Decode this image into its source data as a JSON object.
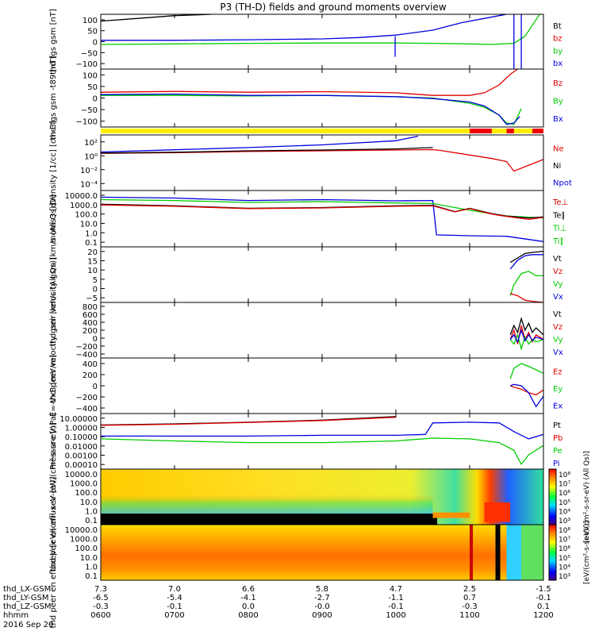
{
  "title": "P3 (TH-D) fields and ground moments overview",
  "footer": {
    "row_labels": [
      "thd_LX-GSM",
      "thd_LY-GSM",
      "thd_LZ-GSM",
      "hhmm"
    ],
    "date": "2016 Sep 20",
    "columns": [
      [
        "7.3",
        "-6.5",
        "-0.3",
        "0600"
      ],
      [
        "7.0",
        "-5.4",
        "-0.1",
        "0700"
      ],
      [
        "6.6",
        "-4.1",
        "0.0",
        "0800"
      ],
      [
        "5.8",
        "-2.7",
        "-0.0",
        "0900"
      ],
      [
        "4.7",
        "-1.1",
        "-0.1",
        "1000"
      ],
      [
        "2.5",
        "0.7",
        "-0.3",
        "1100"
      ],
      [
        "-1.5",
        "-0.1",
        "0.1",
        "1200"
      ]
    ]
  },
  "colors": {
    "black": "#000000",
    "red": "#e00000",
    "green": "#00cc00",
    "blue": "#0000dd",
    "mode_bar_yellow": "#ffee00",
    "mode_bar_red": "#ee0000"
  },
  "chart_data": [
    {
      "type": "line",
      "ylabel": "thd fgs gsm [nT]",
      "yticks": [
        "100",
        "50",
        "0",
        "−50",
        "−100"
      ],
      "ylim": [
        -100,
        100
      ],
      "legend": [
        {
          "name": "Bt",
          "color": "#000000"
        },
        {
          "name": "bz",
          "color": "#e00000"
        },
        {
          "name": "by",
          "color": "#00cc00"
        },
        {
          "name": "bx",
          "color": "#0000dd"
        }
      ],
      "series": [
        {
          "name": "Bt",
          "color": "#000000",
          "x": [
            6.0,
            6.5,
            7.0,
            7.5
          ],
          "y": [
            75,
            85,
            95,
            100
          ]
        },
        {
          "name": "bx",
          "color": "#0000dd",
          "x": [
            6.0,
            7.0,
            8.0,
            9.0,
            9.5,
            10.0,
            10.5,
            10.9,
            11.2,
            11.4,
            11.5
          ],
          "y": [
            5,
            5,
            7,
            10,
            15,
            24,
            42,
            70,
            85,
            95,
            100
          ]
        },
        {
          "name": "by",
          "color": "#00cc00",
          "x": [
            6.0,
            7.0,
            8.0,
            9.0,
            10.0,
            10.5,
            11.0,
            11.3,
            11.6,
            11.75,
            11.85,
            11.95
          ],
          "y": [
            -10,
            -8,
            -6,
            -5,
            -5,
            -6,
            -8,
            -10,
            -6,
            20,
            60,
            100
          ]
        }
      ],
      "spikes": [
        {
          "x": 9.99,
          "y": [
            -55,
            20
          ],
          "color": "#0000dd"
        },
        {
          "x": 11.6,
          "y": [
            -100,
            100
          ],
          "color": "#0000dd"
        },
        {
          "x": 11.7,
          "y": [
            -100,
            100
          ],
          "color": "#0000dd"
        }
      ]
    },
    {
      "type": "line",
      "ylabel": "thd fgs gsm -t89 [nT]",
      "yticks": [
        "100",
        "50",
        "0",
        "−50",
        "−100"
      ],
      "ylim": [
        -120,
        100
      ],
      "legend": [
        {
          "name": "Bz",
          "color": "#e00000"
        },
        {
          "name": "By",
          "color": "#00cc00"
        },
        {
          "name": "Bx",
          "color": "#0000dd"
        }
      ],
      "series": [
        {
          "name": "Bz",
          "color": "#e00000",
          "x": [
            6.0,
            7.0,
            8.0,
            9.0,
            10.0,
            10.5,
            11.0,
            11.2,
            11.4,
            11.55,
            11.65
          ],
          "y": [
            12,
            15,
            12,
            14,
            10,
            0,
            0,
            10,
            40,
            80,
            100
          ]
        },
        {
          "name": "By",
          "color": "#00cc00",
          "x": [
            6.0,
            7.0,
            8.0,
            9.0,
            10.0,
            10.5,
            11.0,
            11.2,
            11.4,
            11.5,
            11.6,
            11.7
          ],
          "y": [
            0,
            0,
            -2,
            0,
            -5,
            -10,
            -30,
            -45,
            -75,
            -105,
            -110,
            -50
          ]
        },
        {
          "name": "Bx",
          "color": "#0000dd",
          "x": [
            6.0,
            7.0,
            8.0,
            9.0,
            10.0,
            10.5,
            11.0,
            11.2,
            11.4,
            11.5,
            11.6,
            11.68
          ],
          "y": [
            3,
            5,
            0,
            0,
            -5,
            -12,
            -25,
            -40,
            -75,
            -110,
            -105,
            -80
          ]
        }
      ]
    },
    {
      "type": "line",
      "ylabel": "Density [1/cc] [cm-3]",
      "yticks": [
        "10²",
        "10⁰",
        "10⁻²",
        "10⁻⁴"
      ],
      "log": true,
      "ylim": [
        1e-05,
        300
      ],
      "legend": [
        {
          "name": "Ne",
          "color": "#e00000"
        },
        {
          "name": "Ni",
          "color": "#000000"
        },
        {
          "name": "Npot",
          "color": "#0000dd"
        }
      ],
      "series": [
        {
          "name": "Ne",
          "color": "#e00000",
          "x": [
            6.0,
            7.0,
            8.0,
            9.0,
            10.0,
            10.5,
            10.6,
            11.0,
            11.3,
            11.5,
            11.6,
            11.7,
            12.0
          ],
          "y": [
            1.0,
            1.2,
            1.8,
            2.2,
            2.8,
            3.2,
            2.5,
            0.6,
            0.2,
            0.08,
            0.004,
            0.01,
            0.15
          ]
        },
        {
          "name": "Ni",
          "color": "#000000",
          "x": [
            6.0,
            7.0,
            8.0,
            9.0,
            10.0,
            10.5
          ],
          "y": [
            1.1,
            1.4,
            2.2,
            2.8,
            4.0,
            6.0
          ]
        },
        {
          "name": "Npot",
          "color": "#0000dd",
          "x": [
            6.0,
            7.0,
            8.0,
            9.0,
            10.0,
            10.3
          ],
          "y": [
            1.5,
            3,
            6,
            14,
            50,
            200
          ]
        }
      ]
    },
    {
      "type": "line",
      "ylabel": "moms3 [eV]",
      "yticks": [
        "10000.0",
        "1000.0",
        "100.0",
        "10.0",
        "1.0",
        "0.1"
      ],
      "log": true,
      "ylim": [
        0.1,
        12000
      ],
      "legend": [
        {
          "name": "Te⊥",
          "color": "#e00000"
        },
        {
          "name": "Te∥",
          "color": "#000000"
        },
        {
          "name": "Ti⊥",
          "color": "#00cc00"
        },
        {
          "name": "Ti∥",
          "color": "#00cc00"
        }
      ],
      "series": [
        {
          "name": "Ti⊥",
          "color": "#0000dd",
          "x": [
            6.0,
            7.0,
            8.0,
            9.0,
            10.0,
            10.5,
            10.55,
            11.0,
            11.5,
            12.0
          ],
          "y": [
            3000,
            2500,
            1500,
            1800,
            1400,
            1500,
            1.2,
            1.0,
            0.9,
            0.3
          ]
        },
        {
          "name": "Ti∥",
          "color": "#00cc00",
          "x": [
            6.0,
            7.0,
            8.0,
            9.0,
            10.0,
            10.5,
            11.0,
            11.5,
            12.0
          ],
          "y": [
            1800,
            1500,
            1000,
            1200,
            900,
            800,
            200,
            60,
            40
          ]
        },
        {
          "name": "Te∥",
          "color": "#000000",
          "x": [
            6.0,
            7.0,
            8.0,
            9.0,
            10.0,
            10.5,
            10.8,
            11.0,
            11.3,
            11.5,
            11.8,
            12.0
          ],
          "y": [
            700,
            500,
            300,
            350,
            500,
            550,
            150,
            300,
            100,
            60,
            40,
            50
          ]
        },
        {
          "name": "Te⊥",
          "color": "#e00000",
          "x": [
            6.0,
            7.0,
            8.0,
            9.0,
            10.0,
            10.5,
            10.8,
            11.0,
            11.3,
            11.5,
            11.8,
            12.0
          ],
          "y": [
            600,
            450,
            280,
            320,
            450,
            500,
            140,
            280,
            90,
            55,
            30,
            45
          ]
        }
      ]
    },
    {
      "type": "line",
      "ylabel": "thd peir velocity gsm [km/s (All Qs)]",
      "yticks": [
        "20",
        "15",
        "10",
        "5",
        "0",
        "−5"
      ],
      "ylim": [
        -5,
        20
      ],
      "legend": [
        {
          "name": "Vt",
          "color": "#000000"
        },
        {
          "name": "Vz",
          "color": "#e00000"
        },
        {
          "name": "Vy",
          "color": "#00cc00"
        },
        {
          "name": "Vx",
          "color": "#0000dd"
        }
      ],
      "series": [
        {
          "name": "Vt",
          "color": "#000000",
          "x": [
            11.55,
            11.65,
            11.75,
            11.85,
            12.0
          ],
          "y": [
            13,
            15,
            17,
            17.5,
            18
          ]
        },
        {
          "name": "Vx",
          "color": "#0000dd",
          "x": [
            11.55,
            11.65,
            11.75,
            11.85,
            12.0
          ],
          "y": [
            10,
            14,
            16,
            16.5,
            16.5
          ]
        },
        {
          "name": "Vy",
          "color": "#00cc00",
          "x": [
            11.55,
            11.6,
            11.7,
            11.8,
            11.9,
            12.0
          ],
          "y": [
            -2,
            3,
            8,
            9,
            7,
            7
          ]
        },
        {
          "name": "Vz",
          "color": "#e00000",
          "x": [
            11.55,
            11.65,
            11.75,
            11.85,
            12.0
          ],
          "y": [
            -1,
            -2,
            -4,
            -4.5,
            -5
          ]
        }
      ]
    },
    {
      "type": "line",
      "ylabel": "thd peer velocity gsm [km/s (All Qs)]",
      "yticks": [
        "800",
        "600",
        "400",
        "200",
        "0",
        "−200",
        "−400"
      ],
      "ylim": [
        -400,
        800
      ],
      "legend": [
        {
          "name": "Vt",
          "color": "#000000"
        },
        {
          "name": "Vz",
          "color": "#e00000"
        },
        {
          "name": "Vy",
          "color": "#00cc00"
        },
        {
          "name": "Vx",
          "color": "#0000dd"
        }
      ],
      "series": [
        {
          "name": "Vt",
          "color": "#000000",
          "x": [
            11.55,
            11.6,
            11.65,
            11.7,
            11.75,
            11.8,
            11.85,
            11.9,
            12.0
          ],
          "y": [
            100,
            300,
            150,
            450,
            200,
            350,
            150,
            250,
            100
          ]
        },
        {
          "name": "Vz",
          "color": "#e00000",
          "x": [
            11.55,
            11.6,
            11.65,
            11.7,
            11.75,
            11.8,
            11.85,
            11.9,
            12.0
          ],
          "y": [
            0,
            200,
            -100,
            300,
            0,
            150,
            -50,
            100,
            0
          ]
        },
        {
          "name": "Vy",
          "color": "#00cc00",
          "x": [
            11.55,
            11.6,
            11.65,
            11.7,
            11.75,
            11.8,
            11.85,
            11.9,
            12.0
          ],
          "y": [
            0,
            -100,
            100,
            -200,
            50,
            -100,
            0,
            -50,
            0
          ]
        },
        {
          "name": "Vx",
          "color": "#0000dd",
          "x": [
            11.55,
            11.6,
            11.65,
            11.7,
            11.75,
            11.8,
            11.85,
            11.9,
            12.0
          ],
          "y": [
            0,
            100,
            -50,
            200,
            -30,
            100,
            -20,
            50,
            0
          ]
        }
      ]
    },
    {
      "type": "line",
      "ylabel": "E=-VxB [mV/m]",
      "yticks": [
        "400",
        "200",
        "0",
        "−200",
        "−400"
      ],
      "ylim": [
        -400,
        400
      ],
      "legend": [
        {
          "name": "Ez",
          "color": "#e00000"
        },
        {
          "name": "Ey",
          "color": "#00cc00"
        },
        {
          "name": "Ex",
          "color": "#0000dd"
        }
      ],
      "series": [
        {
          "name": "Ey",
          "color": "#00cc00",
          "x": [
            11.55,
            11.6,
            11.7,
            11.8,
            11.9,
            12.0
          ],
          "y": [
            100,
            250,
            320,
            280,
            230,
            180
          ]
        },
        {
          "name": "Ez",
          "color": "#e00000",
          "x": [
            11.55,
            11.6,
            11.7,
            11.8,
            11.9,
            12.0
          ],
          "y": [
            0,
            -20,
            -50,
            -100,
            -130,
            -60
          ]
        },
        {
          "name": "Ex",
          "color": "#0000dd",
          "x": [
            11.55,
            11.6,
            11.7,
            11.8,
            11.9,
            12.0
          ],
          "y": [
            0,
            20,
            0,
            -100,
            -300,
            -150
          ]
        }
      ]
    },
    {
      "type": "line",
      "ylabel": "Pressure [nPa]",
      "yticks": [
        "10.00000",
        "1.00000",
        "0.10000",
        "0.01000",
        "0.00100",
        "0.00010"
      ],
      "log": true,
      "ylim": [
        3e-05,
        25
      ],
      "legend": [
        {
          "name": "Pt",
          "color": "#000000"
        },
        {
          "name": "Pb",
          "color": "#e00000"
        },
        {
          "name": "Pe",
          "color": "#00cc00"
        },
        {
          "name": "Pi",
          "color": "#0000dd"
        }
      ],
      "series": [
        {
          "name": "Pt",
          "color": "#000000",
          "x": [
            6.0,
            7.0,
            8.0,
            9.0,
            10.0
          ],
          "y": [
            1.5,
            2,
            3,
            5,
            12
          ]
        },
        {
          "name": "Pb",
          "color": "#e00000",
          "x": [
            6.0,
            7.0,
            8.0,
            9.0,
            10.0
          ],
          "y": [
            1.4,
            1.8,
            2.8,
            4.5,
            10
          ]
        },
        {
          "name": "Pi",
          "color": "#0000dd",
          "x": [
            6.0,
            7.0,
            8.0,
            9.0,
            10.0,
            10.4,
            10.5,
            11.0,
            11.4,
            11.6,
            11.8,
            12.0
          ],
          "y": [
            0.1,
            0.1,
            0.1,
            0.12,
            0.12,
            0.15,
            2.5,
            3,
            2.5,
            0.3,
            0.05,
            0.15
          ]
        },
        {
          "name": "Pe",
          "color": "#00cc00",
          "x": [
            6.0,
            7.0,
            8.0,
            9.0,
            10.0,
            10.5,
            11.0,
            11.4,
            11.6,
            11.7,
            11.8,
            12.0
          ],
          "y": [
            0.05,
            0.03,
            0.02,
            0.02,
            0.03,
            0.06,
            0.05,
            0.02,
            0.003,
            0.0001,
            0.001,
            0.01
          ]
        }
      ]
    },
    {
      "type": "heatmap",
      "ylabel": "thd peir en efluxeV [eV/(cm²-s-sr-eV)]",
      "yticks": [
        "10000.0",
        "1000.0",
        "100.0",
        "10.0",
        "1.0",
        "0.1"
      ],
      "colorbar_ticks": [
        "10⁸",
        "10⁷",
        "10⁶",
        "10⁵",
        "10⁴",
        "10³"
      ],
      "colorbar_label": "[eV/(cm²-s-sr-eV) (All Qs)]"
    },
    {
      "type": "heatmap",
      "ylabel": "thd peer en efluxeV [eV/(cm²-s-sr-eV)]",
      "yticks": [
        "10000.0",
        "1000.0",
        "100.0",
        "10.0",
        "1.0",
        "0.1"
      ],
      "colorbar_ticks": [
        "10⁸",
        "10⁷",
        "10⁶",
        "10⁵",
        "10⁴",
        "10³"
      ],
      "colorbar_label": "[eV/(cm²-s-sr-eV)]"
    }
  ]
}
